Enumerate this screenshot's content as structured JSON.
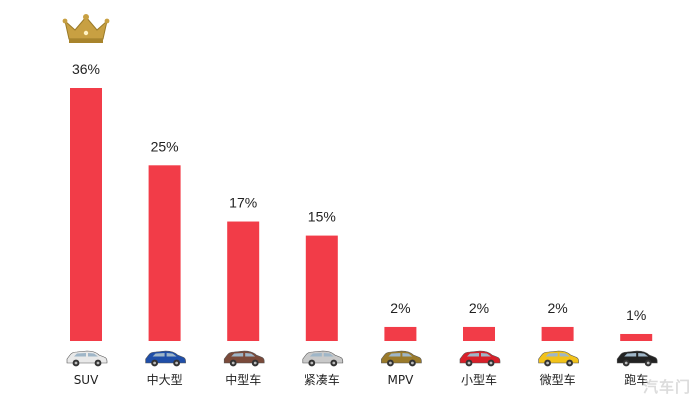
{
  "chart_data": {
    "type": "bar",
    "categories": [
      "SUV",
      "中大型",
      "中型车",
      "紧凑车",
      "MPV",
      "小型车",
      "微型车",
      "跑车"
    ],
    "values": [
      36,
      25,
      17,
      15,
      2,
      2,
      2,
      1
    ],
    "value_labels": [
      "36%",
      "25%",
      "17%",
      "15%",
      "2%",
      "2%",
      "2%",
      "1%"
    ],
    "ylim": [
      0,
      36
    ],
    "grid": false,
    "legend": "none",
    "bar_color": "#f23c48",
    "car_icons": [
      "white-suv-icon",
      "blue-sedan-icon",
      "brown-sedan-icon",
      "silver-hatchback-icon",
      "gold-mpv-icon",
      "red-small-car-icon",
      "yellow-mini-car-icon",
      "black-sports-car-icon"
    ],
    "car_colors": [
      "#e9e9e9",
      "#1f4ea8",
      "#7a4a3a",
      "#c9c9c9",
      "#9a7a2a",
      "#d8202a",
      "#f2c21a",
      "#222222"
    ],
    "top_marker": "crown-icon",
    "crown_color": "#c8a042"
  },
  "watermark": {
    "text": "汽车门"
  }
}
